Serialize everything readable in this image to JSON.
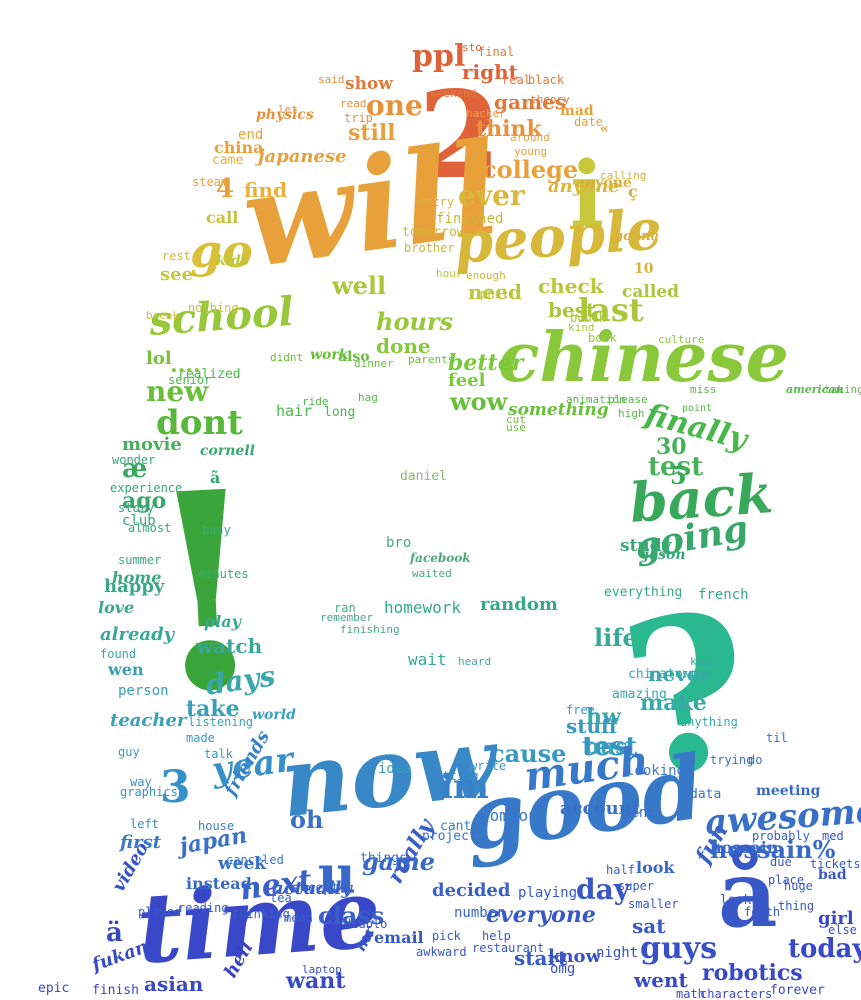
{
  "cloud": {
    "words": [
      {
        "text": "ppl",
        "color": "#e0623a"
      },
      {
        "text": "right",
        "color": "#e0623a"
      },
      {
        "text": "sto",
        "color": "#e0623a"
      },
      {
        "text": "show",
        "color": "#e07a3a"
      },
      {
        "text": "one",
        "color": "#e8913a"
      },
      {
        "text": "games",
        "color": "#e07a3a"
      },
      {
        "text": "2",
        "color": "#e0623a"
      },
      {
        "text": "think",
        "color": "#e8913a"
      },
      {
        "text": "still",
        "color": "#e8a13a"
      },
      {
        "text": "japanese",
        "color": "#e8a13a"
      },
      {
        "text": "college",
        "color": "#e8a13a"
      },
      {
        "text": "came",
        "color": "#e8b13a"
      },
      {
        "text": "4",
        "color": "#e8a13a"
      },
      {
        "text": "find",
        "color": "#e8b13a"
      },
      {
        "text": "will",
        "color": "#e8a13a"
      },
      {
        "text": "ever",
        "color": "#d8b83a"
      },
      {
        "text": "people",
        "color": "#d8b83a"
      },
      {
        "text": "go",
        "color": "#d8c03a"
      },
      {
        "text": "i",
        "color": "#c8c83a"
      },
      {
        "text": "anyone",
        "color": "#d8b83a"
      },
      {
        "text": "last",
        "color": "#a8c83a"
      },
      {
        "text": "check",
        "color": "#b8c83a"
      },
      {
        "text": "need",
        "color": "#b8c83a"
      },
      {
        "text": "best",
        "color": "#a8c83a"
      },
      {
        "text": "school",
        "color": "#98c83a"
      },
      {
        "text": "well",
        "color": "#a8c83a"
      },
      {
        "text": "hours",
        "color": "#98c83a"
      },
      {
        "text": "done",
        "color": "#88c83a"
      },
      {
        "text": "chinese",
        "color": "#88c83a"
      },
      {
        "text": "better",
        "color": "#78c83a"
      },
      {
        "text": "feel",
        "color": "#78c83a"
      },
      {
        "text": "wow",
        "color": "#68c03a"
      },
      {
        "text": "new",
        "color": "#68c03a"
      },
      {
        "text": "dont",
        "color": "#58b83a"
      },
      {
        "text": "lol",
        "color": "#78c03a"
      },
      {
        "text": "hair",
        "color": "#48b84a"
      },
      {
        "text": "long",
        "color": "#48b84a"
      },
      {
        "text": "finally",
        "color": "#48b84a"
      },
      {
        "text": "30",
        "color": "#48b05a"
      },
      {
        "text": "test",
        "color": "#48b05a"
      },
      {
        "text": "movie",
        "color": "#48b05a"
      },
      {
        "text": "5",
        "color": "#38a85a"
      },
      {
        "text": "back",
        "color": "#38a85a"
      },
      {
        "text": "going",
        "color": "#38a86a"
      },
      {
        "text": "!",
        "color": "#3aa53a"
      },
      {
        "text": "ago",
        "color": "#38a86a"
      },
      {
        "text": "club",
        "color": "#38a87a"
      },
      {
        "text": "study",
        "color": "#38a87a"
      },
      {
        "text": "happy",
        "color": "#38a88a"
      },
      {
        "text": "love",
        "color": "#38a88a"
      },
      {
        "text": "homework",
        "color": "#38a88a"
      },
      {
        "text": "random",
        "color": "#38a88a"
      },
      {
        "text": "french",
        "color": "#38a88a"
      },
      {
        "text": "already",
        "color": "#38a89a"
      },
      {
        "text": "watch",
        "color": "#38a89a"
      },
      {
        "text": "wait",
        "color": "#38a89a"
      },
      {
        "text": "life",
        "color": "#38a89a"
      },
      {
        "text": "days",
        "color": "#38a8aa"
      },
      {
        "text": "?",
        "color": "#2ab890"
      },
      {
        "text": "never",
        "color": "#38a8aa"
      },
      {
        "text": "make",
        "color": "#38a8aa"
      },
      {
        "text": "hw",
        "color": "#38a8aa"
      },
      {
        "text": "bus",
        "color": "#38a8b8"
      },
      {
        "text": "teacher",
        "color": "#38a0b8"
      },
      {
        "text": "take",
        "color": "#38a0b8"
      },
      {
        "text": "cause",
        "color": "#3898c0"
      },
      {
        "text": "test",
        "color": "#3898c0"
      },
      {
        "text": "stuff",
        "color": "#3898c0"
      },
      {
        "text": "year",
        "color": "#3890c8"
      },
      {
        "text": "now",
        "color": "#3888c8"
      },
      {
        "text": "im",
        "color": "#3880c8"
      },
      {
        "text": "much",
        "color": "#3878c8"
      },
      {
        "text": "awesome",
        "color": "#3870c8"
      },
      {
        "text": "3",
        "color": "#3890c8"
      },
      {
        "text": "good",
        "color": "#3878c8"
      },
      {
        "text": "friends",
        "color": "#3880c8"
      },
      {
        "text": "oh",
        "color": "#3870c8"
      },
      {
        "text": "hossain%",
        "color": "#3868c8"
      },
      {
        "text": "first",
        "color": "#3878c8"
      },
      {
        "text": "japan",
        "color": "#3870c8"
      },
      {
        "text": "week",
        "color": "#3870c8"
      },
      {
        "text": "game",
        "color": "#3868c8"
      },
      {
        "text": "next",
        "color": "#3860c8"
      },
      {
        "text": "fun",
        "color": "#3860c8"
      },
      {
        "text": "u",
        "color": "#3868c8"
      },
      {
        "text": "really",
        "color": "#3860c8"
      },
      {
        "text": "everyone",
        "color": "#3858c8"
      },
      {
        "text": "day",
        "color": "#3858c8"
      },
      {
        "text": "å",
        "color": "#3858c8"
      },
      {
        "text": "time",
        "color": "#3848c8"
      },
      {
        "text": "guys",
        "color": "#3850c8"
      },
      {
        "text": "today",
        "color": "#3848c8"
      },
      {
        "text": "girl",
        "color": "#3848c8"
      },
      {
        "text": "know",
        "color": "#3850c8"
      },
      {
        "text": "robotics",
        "color": "#3848c8"
      },
      {
        "text": "asian",
        "color": "#3848c8"
      },
      {
        "text": "want",
        "color": "#3848c8"
      },
      {
        "text": "went",
        "color": "#3848c8"
      },
      {
        "text": "video",
        "color": "#3850c8"
      },
      {
        "text": "fukang",
        "color": "#3848c8"
      },
      {
        "text": "hell",
        "color": "#3840c8"
      },
      {
        "text": "epic",
        "color": "#3848c0"
      },
      {
        "text": "finish",
        "color": "#3848c0"
      },
      {
        "text": "ä",
        "color": "#3848c0"
      },
      {
        "text": "æ",
        "color": "#38a85a"
      },
      {
        "text": "realized",
        "color": "#48b84a"
      },
      {
        "text": "senior",
        "color": "#48b84a"
      },
      {
        "text": "called",
        "color": "#a8c83a"
      },
      {
        "text": "book",
        "color": "#98c83a"
      },
      {
        "text": "culture",
        "color": "#88c83a"
      },
      {
        "text": "something",
        "color": "#68c03a"
      },
      {
        "text": "point",
        "color": "#58b84a"
      },
      {
        "text": "miss",
        "color": "#58b84a"
      },
      {
        "text": "american",
        "color": "#58b84a"
      },
      {
        "text": "taking",
        "color": "#58b84a"
      },
      {
        "text": "work",
        "color": "#68c03a"
      },
      {
        "text": "also",
        "color": "#68c03a"
      },
      {
        "text": "dinner",
        "color": "#68c03a"
      },
      {
        "text": "parents",
        "color": "#68c03a"
      },
      {
        "text": "didnt",
        "color": "#68c03a"
      },
      {
        "text": "kids",
        "color": "#b8c83a"
      },
      {
        "text": "see",
        "color": "#c8c83a"
      },
      {
        "text": "call",
        "color": "#c8c03a"
      },
      {
        "text": "finished",
        "color": "#c8b83a"
      },
      {
        "text": "tomorrow",
        "color": "#c8b83a"
      },
      {
        "text": "enough",
        "color": "#c8b83a"
      },
      {
        "text": "brother",
        "color": "#c8b83a"
      },
      {
        "text": "entry",
        "color": "#d8b03a"
      },
      {
        "text": "anyone",
        "color": "#d8b03a"
      },
      {
        "text": "gonna",
        "color": "#d8b03a"
      },
      {
        "text": "10",
        "color": "#d8b03a"
      },
      {
        "text": "mad",
        "color": "#e8a13a"
      },
      {
        "text": "date",
        "color": "#e8a13a"
      },
      {
        "text": "real",
        "color": "#e07a3a"
      },
      {
        "text": "black",
        "color": "#e07a3a"
      },
      {
        "text": "final",
        "color": "#e07a3a"
      },
      {
        "text": "physics",
        "color": "#e8913a"
      },
      {
        "text": "trip",
        "color": "#e8913a"
      },
      {
        "text": "end",
        "color": "#e8a13a"
      },
      {
        "text": "china",
        "color": "#e8a13a"
      },
      {
        "text": "steam",
        "color": "#e8a13a"
      },
      {
        "text": "rest",
        "color": "#d8b83a"
      },
      {
        "text": "break",
        "color": "#c8c03a"
      },
      {
        "text": "nothing",
        "color": "#c8c03a"
      },
      {
        "text": "phil",
        "color": "#b8c83a"
      },
      {
        "text": "daniel",
        "color": "#88b878"
      },
      {
        "text": "bro",
        "color": "#48a878"
      },
      {
        "text": "facebook",
        "color": "#48a878"
      },
      {
        "text": "waited",
        "color": "#48a878"
      },
      {
        "text": "ran",
        "color": "#48a888"
      },
      {
        "text": "heard",
        "color": "#48a898"
      },
      {
        "text": "chinatown",
        "color": "#38a8aa"
      },
      {
        "text": "amazing",
        "color": "#38a8aa"
      },
      {
        "text": "idea",
        "color": "#3898c0"
      },
      {
        "text": "write",
        "color": "#3898c0"
      },
      {
        "text": "someone",
        "color": "#3878c8"
      },
      {
        "text": "account",
        "color": "#3870c8"
      },
      {
        "text": "cant",
        "color": "#3880c8"
      },
      {
        "text": "project",
        "color": "#3870c8"
      },
      {
        "text": "things",
        "color": "#3870c8"
      },
      {
        "text": "except",
        "color": "#3868c8"
      },
      {
        "text": "instead",
        "color": "#3868c8"
      },
      {
        "text": "actually",
        "color": "#3860c8"
      },
      {
        "text": "decided",
        "color": "#3860c8"
      },
      {
        "text": "number",
        "color": "#3860c8"
      },
      {
        "text": "start",
        "color": "#3858c8"
      },
      {
        "text": "playing",
        "color": "#3858c8"
      },
      {
        "text": "night",
        "color": "#3850c8"
      },
      {
        "text": "omg",
        "color": "#3850c8"
      },
      {
        "text": "sat",
        "color": "#3858c8"
      },
      {
        "text": "look",
        "color": "#3868c8"
      },
      {
        "text": "penn",
        "color": "#3870c8"
      },
      {
        "text": "looks",
        "color": "#3858c8"
      },
      {
        "text": "forth",
        "color": "#3858c8"
      },
      {
        "text": "thing",
        "color": "#3850c8"
      },
      {
        "text": "place",
        "color": "#3850c8"
      },
      {
        "text": "tickets",
        "color": "#3858c8"
      },
      {
        "text": "med",
        "color": "#3858c8"
      },
      {
        "text": "bad",
        "color": "#3858c8"
      },
      {
        "text": "else",
        "color": "#3850c8"
      },
      {
        "text": "forever",
        "color": "#3848c8"
      },
      {
        "text": "characters",
        "color": "#3848c8"
      },
      {
        "text": "math",
        "color": "#3848c8"
      },
      {
        "text": "class",
        "color": "#3860c8"
      },
      {
        "text": "email",
        "color": "#3858c8"
      },
      {
        "text": "mr",
        "color": "#3858c8"
      },
      {
        "text": "laptop",
        "color": "#3850c8"
      },
      {
        "text": "diablo",
        "color": "#3858c8"
      },
      {
        "text": "awkward",
        "color": "#3858c8"
      },
      {
        "text": "tea",
        "color": "#3860c8"
      },
      {
        "text": "mean",
        "color": "#3860c8"
      },
      {
        "text": "thinking",
        "color": "#3860c8"
      },
      {
        "text": "reading",
        "color": "#3858c8"
      },
      {
        "text": "played",
        "color": "#3858c8"
      },
      {
        "text": "canceled",
        "color": "#3878c8"
      },
      {
        "text": "house",
        "color": "#3880c8"
      },
      {
        "text": "left",
        "color": "#3888c8"
      },
      {
        "text": "graphics",
        "color": "#3890c8"
      },
      {
        "text": "way",
        "color": "#3890c8"
      },
      {
        "text": "guy",
        "color": "#3898c8"
      },
      {
        "text": "talk",
        "color": "#3898c8"
      },
      {
        "text": "made",
        "color": "#3898c8"
      },
      {
        "text": "listening",
        "color": "#38a0c0"
      },
      {
        "text": "world",
        "color": "#38a0c0"
      },
      {
        "text": "person",
        "color": "#38a0b8"
      },
      {
        "text": "wen",
        "color": "#38a0b0"
      },
      {
        "text": "found",
        "color": "#38a8a0"
      },
      {
        "text": "play",
        "color": "#38a890"
      },
      {
        "text": "summer",
        "color": "#38a880"
      },
      {
        "text": "home",
        "color": "#38a880"
      },
      {
        "text": "almost",
        "color": "#38a878"
      },
      {
        "text": "story",
        "color": "#38a878"
      },
      {
        "text": "wonder",
        "color": "#38a870"
      },
      {
        "text": "experience",
        "color": "#38a870"
      },
      {
        "text": "cornell",
        "color": "#38a870"
      },
      {
        "text": "everything",
        "color": "#38a88a"
      },
      {
        "text": "jason",
        "color": "#38a87a"
      },
      {
        "text": "keep",
        "color": "#38a8aa"
      },
      {
        "text": "free",
        "color": "#3898c0"
      },
      {
        "text": "anything",
        "color": "#38a8aa"
      },
      {
        "text": "looking",
        "color": "#3878c8"
      },
      {
        "text": "data",
        "color": "#3870c8"
      },
      {
        "text": "trying",
        "color": "#3870c8"
      },
      {
        "text": "do",
        "color": "#3870c8"
      },
      {
        "text": "til",
        "color": "#3870c8"
      },
      {
        "text": "meeting",
        "color": "#3868c8"
      },
      {
        "text": "probably",
        "color": "#3860c8"
      },
      {
        "text": "due",
        "color": "#3858c8"
      },
      {
        "text": "huge",
        "color": "#3858c8"
      },
      {
        "text": "busy",
        "color": "#38a88a"
      },
      {
        "text": "minutes",
        "color": "#38a878"
      },
      {
        "text": "half",
        "color": "#3860c8"
      },
      {
        "text": "super",
        "color": "#3860c8"
      },
      {
        "text": "smaller",
        "color": "#3858c8"
      },
      {
        "text": "help",
        "color": "#3858c8"
      },
      {
        "text": "restaurant",
        "color": "#3858c8"
      },
      {
        "text": "pick",
        "color": "#3858c8"
      },
      {
        "text": "getting",
        "color": "#3888c8"
      },
      {
        "text": "....",
        "color": "#88c83a"
      },
      {
        "text": "«",
        "color": "#e8a13a"
      },
      {
        "text": "ç",
        "color": "#d8b03a"
      },
      {
        "text": "ã",
        "color": "#38a870"
      },
      {
        "text": "remember",
        "color": "#48a888"
      },
      {
        "text": "finishing",
        "color": "#48a888"
      },
      {
        "text": "animation",
        "color": "#58b84a"
      },
      {
        "text": "please",
        "color": "#58b84a"
      },
      {
        "text": "high",
        "color": "#58b84a"
      },
      {
        "text": "use",
        "color": "#68c03a"
      },
      {
        "text": "cut",
        "color": "#68c03a"
      },
      {
        "text": "hour",
        "color": "#b8c83a"
      },
      {
        "text": "bunch",
        "color": "#a8c83a"
      },
      {
        "text": "kind",
        "color": "#a8c83a"
      },
      {
        "text": "hacker",
        "color": "#e8a13a"
      },
      {
        "text": "calling",
        "color": "#d8b03a"
      },
      {
        "text": "weekend",
        "color": "#e07a3a"
      },
      {
        "text": "read",
        "color": "#e8913a"
      },
      {
        "text": "said",
        "color": "#e8913a"
      },
      {
        "text": "let",
        "color": "#e8913a"
      },
      {
        "text": "theory",
        "color": "#e07a3a"
      },
      {
        "text": "around",
        "color": "#e8a13a"
      },
      {
        "text": "young",
        "color": "#e8a13a"
      },
      {
        "text": "ride",
        "color": "#48b84a"
      },
      {
        "text": "hag",
        "color": "#58b84a"
      },
      {
        "text": "hossain",
        "color": "#3868c8"
      }
    ]
  }
}
